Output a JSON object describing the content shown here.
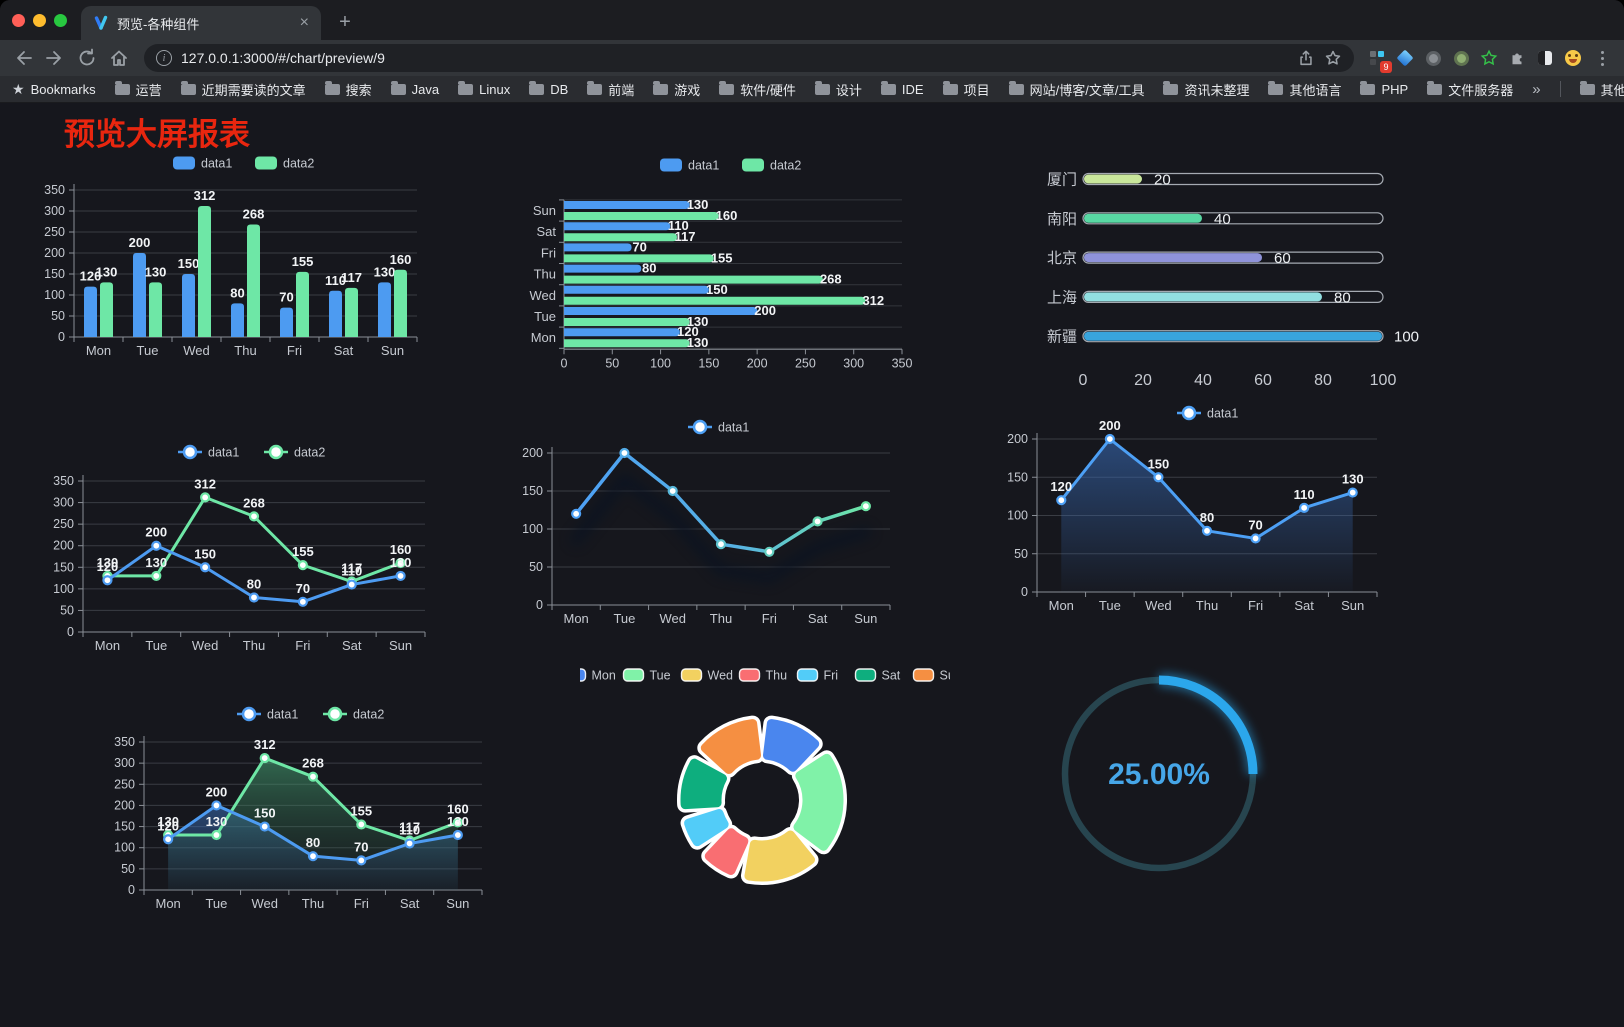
{
  "browser": {
    "tab_title": "预览-各种组件",
    "close_glyph": "×",
    "new_tab_glyph": "+",
    "url": "127.0.0.1:3000/#/chart/preview/9",
    "bookmarks_label": "Bookmarks",
    "bookmarks": [
      "运营",
      "近期需要读的文章",
      "搜索",
      "Java",
      "Linux",
      "DB",
      "前端",
      "游戏",
      "软件/硬件",
      "设计",
      "IDE",
      "项目",
      "网站/博客/文章/工具",
      "资讯未整理",
      "其他语言",
      "PHP",
      "文件服务器"
    ],
    "overflow_glyph": "»",
    "other_bookmarks": "其他书签",
    "extension_badge": "9",
    "bookmarks_star_glyph": "★"
  },
  "page": {
    "title": "预览大屏报表",
    "title_color": "#e9260f"
  },
  "colors": {
    "series_blue": "#4d9bf1",
    "series_green": "#6ee7a6",
    "axis_text": "#c6cad1",
    "grid_line": "#3a3d44",
    "axis_line": "#8a8f96",
    "value_label": "#f2f4f6",
    "background": "#16171d"
  },
  "chart_data": [
    {
      "id": "bar-vertical",
      "type": "bar",
      "legend": [
        "data1",
        "data2"
      ],
      "categories": [
        "Mon",
        "Tue",
        "Wed",
        "Thu",
        "Fri",
        "Sat",
        "Sun"
      ],
      "series": [
        {
          "name": "data1",
          "color": "#4d9bf1",
          "values": [
            120,
            200,
            150,
            80,
            70,
            110,
            130
          ]
        },
        {
          "name": "data2",
          "color": "#6ee7a6",
          "values": [
            130,
            130,
            312,
            268,
            155,
            117,
            160
          ]
        }
      ],
      "ylim": [
        0,
        350
      ],
      "yticks": [
        0,
        50,
        100,
        150,
        200,
        250,
        300,
        350
      ],
      "show_labels": true
    },
    {
      "id": "bar-horizontal",
      "type": "bar",
      "orientation": "horizontal",
      "legend": [
        "data1",
        "data2"
      ],
      "categories_top_to_bottom": [
        "Sun",
        "Sat",
        "Fri",
        "Thu",
        "Wed",
        "Tue",
        "Mon"
      ],
      "series": [
        {
          "name": "data1",
          "color": "#4d9bf1",
          "values_top_to_bottom": [
            130,
            110,
            70,
            80,
            150,
            200,
            120
          ]
        },
        {
          "name": "data2",
          "color": "#6ee7a6",
          "values_top_to_bottom": [
            160,
            117,
            155,
            268,
            312,
            130,
            130
          ]
        }
      ],
      "xlim": [
        0,
        350
      ],
      "xticks": [
        0,
        50,
        100,
        150,
        200,
        250,
        300,
        350
      ],
      "show_labels": true
    },
    {
      "id": "progress-bars",
      "type": "bar",
      "orientation": "horizontal-progress",
      "items": [
        {
          "label": "厦门",
          "value": 20,
          "color": "#c9e79b"
        },
        {
          "label": "南阳",
          "value": 40,
          "color": "#58d8a3"
        },
        {
          "label": "北京",
          "value": 60,
          "color": "#8f93da"
        },
        {
          "label": "上海",
          "value": 80,
          "color": "#92dfe1"
        },
        {
          "label": "新疆",
          "value": 100,
          "color": "#39a4dc"
        }
      ],
      "xlim": [
        0,
        100
      ],
      "xticks": [
        0,
        20,
        40,
        60,
        80,
        100
      ]
    },
    {
      "id": "line-two-series",
      "type": "line",
      "legend": [
        "data1",
        "data2"
      ],
      "categories": [
        "Mon",
        "Tue",
        "Wed",
        "Thu",
        "Fri",
        "Sat",
        "Sun"
      ],
      "series": [
        {
          "name": "data1",
          "color": "#4d9bf1",
          "values": [
            120,
            200,
            150,
            80,
            70,
            110,
            130
          ]
        },
        {
          "name": "data2",
          "color": "#6ee7a6",
          "values": [
            130,
            130,
            312,
            268,
            155,
            117,
            160
          ]
        }
      ],
      "ylim": [
        0,
        350
      ],
      "yticks": [
        0,
        50,
        100,
        150,
        200,
        250,
        300,
        350
      ],
      "show_labels": true
    },
    {
      "id": "line-gradient",
      "type": "line",
      "legend": [
        "data1"
      ],
      "categories": [
        "Mon",
        "Tue",
        "Wed",
        "Thu",
        "Fri",
        "Sat",
        "Sun"
      ],
      "series": [
        {
          "name": "data1",
          "color_gradient": [
            "#4da0f5",
            "#6ee7a6"
          ],
          "values": [
            120,
            200,
            150,
            80,
            70,
            110,
            130
          ]
        }
      ],
      "ylim": [
        0,
        200
      ],
      "yticks": [
        0,
        50,
        100,
        150,
        200
      ],
      "show_labels": false
    },
    {
      "id": "line-area",
      "type": "area",
      "legend": [
        "data1"
      ],
      "categories": [
        "Mon",
        "Tue",
        "Wed",
        "Thu",
        "Fri",
        "Sat",
        "Sun"
      ],
      "series": [
        {
          "name": "data1",
          "color": "#4da0f5",
          "values": [
            120,
            200,
            150,
            80,
            70,
            110,
            130
          ]
        }
      ],
      "ylim": [
        0,
        200
      ],
      "yticks": [
        0,
        50,
        100,
        150,
        200
      ],
      "show_labels": true
    },
    {
      "id": "line-area-two-series",
      "type": "area",
      "legend": [
        "data1",
        "data2"
      ],
      "categories": [
        "Mon",
        "Tue",
        "Wed",
        "Thu",
        "Fri",
        "Sat",
        "Sun"
      ],
      "series": [
        {
          "name": "data1",
          "color": "#4d9bf1",
          "values": [
            120,
            200,
            150,
            80,
            70,
            110,
            130
          ]
        },
        {
          "name": "data2",
          "color": "#6ee7a6",
          "values": [
            130,
            130,
            312,
            268,
            155,
            117,
            160
          ]
        }
      ],
      "ylim": [
        0,
        350
      ],
      "yticks": [
        0,
        50,
        100,
        150,
        200,
        250,
        300,
        350
      ],
      "show_labels": true
    },
    {
      "id": "donut",
      "type": "pie",
      "legend": [
        "Mon",
        "Tue",
        "Wed",
        "Thu",
        "Fri",
        "Sat",
        "Sun"
      ],
      "items": [
        {
          "label": "Mon",
          "value": 120,
          "color": "#4a86ee"
        },
        {
          "label": "Tue",
          "value": 200,
          "color": "#80f2a8"
        },
        {
          "label": "Wed",
          "value": 150,
          "color": "#f2d160"
        },
        {
          "label": "Thu",
          "value": 80,
          "color": "#f96e72"
        },
        {
          "label": "Fri",
          "value": 70,
          "color": "#52ccf8"
        },
        {
          "label": "Sat",
          "value": 110,
          "color": "#0eae7e"
        },
        {
          "label": "Sun",
          "value": 130,
          "color": "#f58f42"
        }
      ]
    },
    {
      "id": "gauge",
      "type": "gauge",
      "value": 25,
      "value_label": "25.00%",
      "color": "#2ba7ec",
      "track_color": "#27454f",
      "text_color": "#46a6e8"
    }
  ]
}
